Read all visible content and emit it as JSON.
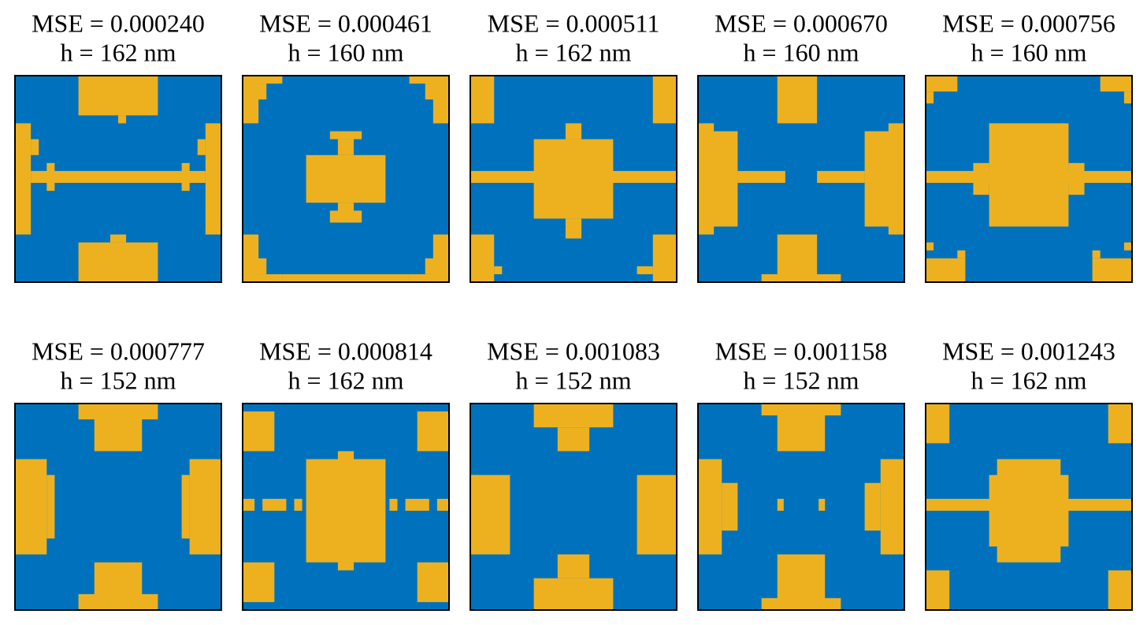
{
  "panels": [
    {
      "mse": "MSE = 0.000240",
      "height": "h = 162 nm"
    },
    {
      "mse": "MSE = 0.000461",
      "height": "h = 160 nm"
    },
    {
      "mse": "MSE = 0.000511",
      "height": "h = 162 nm"
    },
    {
      "mse": "MSE = 0.000670",
      "height": "h = 160 nm"
    },
    {
      "mse": "MSE = 0.000756",
      "height": "h = 160 nm"
    },
    {
      "mse": "MSE = 0.000777",
      "height": "h = 152 nm"
    },
    {
      "mse": "MSE = 0.000814",
      "height": "h = 162 nm"
    },
    {
      "mse": "MSE = 0.001083",
      "height": "h = 152 nm"
    },
    {
      "mse": "MSE = 0.001158",
      "height": "h = 152 nm"
    },
    {
      "mse": "MSE = 0.001243",
      "height": "h = 162 nm"
    }
  ]
}
